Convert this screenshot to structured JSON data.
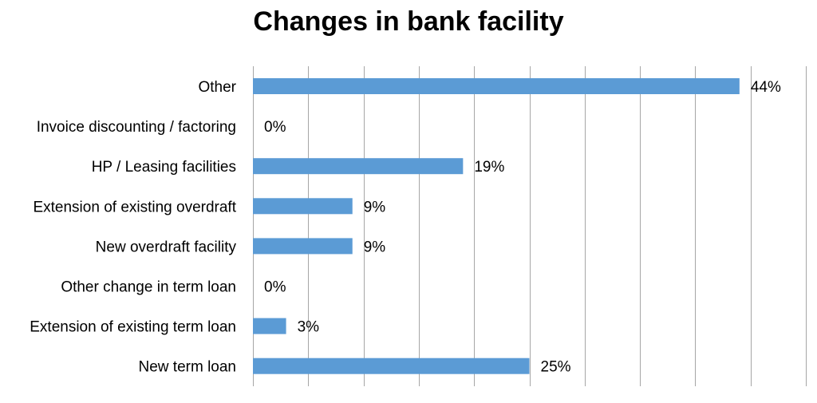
{
  "chart_data": {
    "type": "bar",
    "orientation": "horizontal",
    "title": "Changes in bank facility",
    "xlabel": "",
    "ylabel": "",
    "categories": [
      "Other",
      "Invoice discounting / factoring",
      "HP / Leasing facilities",
      "Extension of existing overdraft",
      "New overdraft facility",
      "Other change in term loan",
      "Extension of existing term loan",
      "New term loan"
    ],
    "values": [
      44,
      0,
      19,
      9,
      9,
      0,
      3,
      25
    ],
    "value_labels": [
      "44%",
      "0%",
      "19%",
      "9%",
      "9%",
      "0%",
      "3%",
      "25%"
    ],
    "xlim": [
      0,
      50
    ],
    "grid": "vertical",
    "legend": "none",
    "bar_color": "#5b9bd5",
    "grid_color": "#a6a6a6"
  }
}
